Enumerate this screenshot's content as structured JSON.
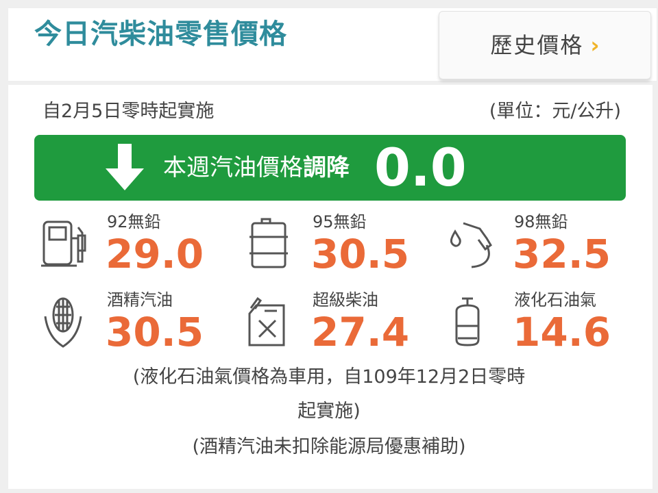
{
  "header": {
    "title": "今日汽柴油零售價格",
    "history_button": "歷史價格",
    "history_chevron": "›"
  },
  "effective": "自2月5日零時起實施",
  "unit": "(單位：元/公升)",
  "banner": {
    "text_prefix": "本週汽油價格",
    "text_action": "調降",
    "value": "0.0",
    "direction": "down",
    "color": "#1f9b3e"
  },
  "fuels": [
    {
      "name": "92無鉛",
      "price": "29.0",
      "icon": "gas-pump-icon"
    },
    {
      "name": "95無鉛",
      "price": "30.5",
      "icon": "oil-barrel-icon"
    },
    {
      "name": "98無鉛",
      "price": "32.5",
      "icon": "fuel-nozzle-icon"
    },
    {
      "name": "酒精汽油",
      "price": "30.5",
      "icon": "corn-icon"
    },
    {
      "name": "超級柴油",
      "price": "27.4",
      "icon": "jerry-can-icon"
    },
    {
      "name": "液化石油氣",
      "price": "14.6",
      "icon": "gas-cylinder-icon"
    }
  ],
  "notes": [
    "(液化石油氣價格為車用，自109年12月2日零時",
    "起實施)",
    "(酒精汽油未扣除能源局優惠補助)"
  ],
  "colors": {
    "title": "#2f8c9c",
    "price": "#ea6a38",
    "chevron": "#f0b429"
  }
}
